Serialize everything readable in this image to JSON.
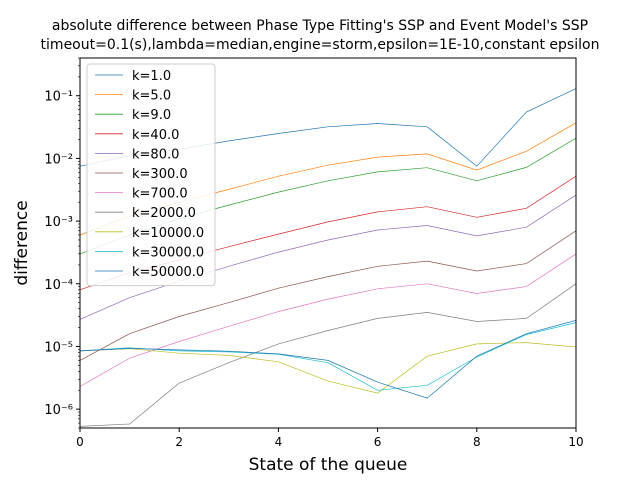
{
  "chart_data": {
    "type": "line",
    "title": "absolute difference between Phase Type Fitting's SSP and Event Model's SSP",
    "subtitle": "timeout=0.1(s),lambda=median,engine=storm,epsilon=1E-10,constant epsilon",
    "xlabel": "State of the queue",
    "ylabel": "difference",
    "xlim": [
      0,
      10
    ],
    "ylim": [
      5e-07,
      0.4
    ],
    "yscale": "log",
    "x_ticks": [
      "0",
      "2",
      "4",
      "6",
      "8",
      "10"
    ],
    "y_ticks": [
      "10⁻⁶",
      "10⁻⁵",
      "10⁻⁴",
      "10⁻³",
      "10⁻²",
      "10⁻¹"
    ],
    "grid": false,
    "legend_position": "upper left",
    "x": [
      0,
      1,
      2,
      3,
      4,
      5,
      6,
      7,
      8,
      9,
      10
    ],
    "series": [
      {
        "name": "k=1.0",
        "color": "#1f77b4",
        "values": [
          0.0075,
          0.011,
          0.014,
          0.019,
          0.025,
          0.032,
          0.036,
          0.032,
          0.0075,
          0.055,
          0.13
        ]
      },
      {
        "name": "k=5.0",
        "color": "#ff7f0e",
        "values": [
          0.0006,
          0.0012,
          0.002,
          0.0032,
          0.0052,
          0.0078,
          0.0105,
          0.0118,
          0.0065,
          0.013,
          0.037
        ]
      },
      {
        "name": "k=9.0",
        "color": "#2ca02c",
        "values": [
          0.0003,
          0.0006,
          0.0011,
          0.0018,
          0.0029,
          0.0044,
          0.0061,
          0.0071,
          0.0044,
          0.0072,
          0.021
        ]
      },
      {
        "name": "k=40.0",
        "color": "#d62728",
        "values": [
          8e-05,
          0.00015,
          0.00024,
          0.00039,
          0.00062,
          0.00097,
          0.0014,
          0.0017,
          0.00115,
          0.0016,
          0.0052
        ]
      },
      {
        "name": "k=80.0",
        "color": "#9467bd",
        "values": [
          2.7e-05,
          6e-05,
          0.00011,
          0.00019,
          0.00032,
          0.0005,
          0.00072,
          0.00085,
          0.00058,
          0.0008,
          0.0026
        ]
      },
      {
        "name": "k=300.0",
        "color": "#8c564b",
        "values": [
          6e-06,
          1.6e-05,
          3e-05,
          5e-05,
          8.5e-05,
          0.00013,
          0.00019,
          0.00023,
          0.00016,
          0.00021,
          0.0007
        ]
      },
      {
        "name": "k=700.0",
        "color": "#e377c2",
        "values": [
          2.3e-06,
          6.5e-06,
          1.2e-05,
          2.1e-05,
          3.6e-05,
          5.7e-05,
          8.3e-05,
          0.0001,
          7e-05,
          9e-05,
          0.0003
        ]
      },
      {
        "name": "k=2000.0",
        "color": "#7f7f7f",
        "values": [
          5.3e-07,
          5.8e-07,
          2.6e-06,
          5.5e-06,
          1.1e-05,
          1.8e-05,
          2.8e-05,
          3.5e-05,
          2.5e-05,
          2.8e-05,
          0.0001
        ]
      },
      {
        "name": "k=10000.0",
        "color": "#bcbd22",
        "values": [
          8.5e-06,
          9.2e-06,
          7.8e-06,
          7.2e-06,
          5.7e-06,
          2.8e-06,
          1.8e-06,
          7e-06,
          1.1e-05,
          1.15e-05,
          9.8e-06
        ]
      },
      {
        "name": "k=30000.0",
        "color": "#17becf",
        "values": [
          8.5e-06,
          9.5e-06,
          8.5e-06,
          8.2e-06,
          7.5e-06,
          5.5e-06,
          2e-06,
          2.4e-06,
          6.8e-06,
          1.55e-05,
          2.4e-05
        ]
      },
      {
        "name": "k=50000.0",
        "color": "#1f77b4",
        "values": [
          8.5e-06,
          9.3e-06,
          8.8e-06,
          8.4e-06,
          7.6e-06,
          6e-06,
          2.7e-06,
          1.5e-06,
          7e-06,
          1.6e-05,
          2.6e-05
        ]
      }
    ]
  }
}
